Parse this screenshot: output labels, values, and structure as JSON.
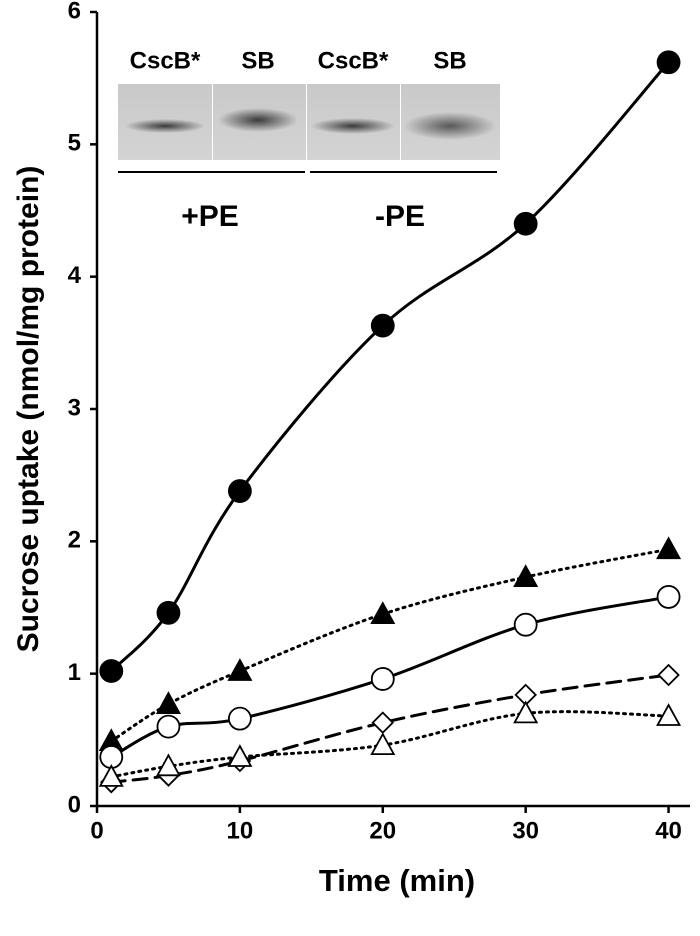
{
  "chart_data": {
    "type": "line",
    "xlabel": "Time (min)",
    "ylabel": "Sucrose uptake (nmol/mg protein)",
    "x": [
      1,
      5,
      10,
      20,
      30,
      40
    ],
    "xlim": [
      0,
      41.5
    ],
    "xticks": [
      0,
      10,
      20,
      30,
      40
    ],
    "ylim": [
      0,
      6
    ],
    "yticks": [
      0,
      1,
      2,
      3,
      4,
      5,
      6
    ],
    "series": [
      {
        "color": "#000000",
        "marker": "circle",
        "fill": "filled",
        "linestyle": "solid",
        "values": [
          1.02,
          1.46,
          2.38,
          3.63,
          4.4,
          5.62
        ]
      },
      {
        "color": "#000000",
        "marker": "triangle",
        "fill": "filled",
        "linestyle": "dotted",
        "values": [
          0.49,
          0.77,
          1.02,
          1.45,
          1.73,
          1.94
        ]
      },
      {
        "color": "#000000",
        "marker": "circle",
        "fill": "open",
        "linestyle": "solid",
        "values": [
          0.37,
          0.6,
          0.66,
          0.96,
          1.37,
          1.58
        ]
      },
      {
        "color": "#000000",
        "marker": "diamond",
        "fill": "open",
        "linestyle": "dashed",
        "values": [
          0.18,
          0.23,
          0.34,
          0.63,
          0.84,
          0.99
        ]
      },
      {
        "color": "#000000",
        "marker": "triangle",
        "fill": "open",
        "linestyle": "dotted",
        "values": [
          0.22,
          0.3,
          0.37,
          0.46,
          0.7,
          0.68
        ]
      }
    ]
  },
  "inset": {
    "lanes": [
      "CscB*",
      "SB",
      "CscB*",
      "SB"
    ],
    "groups": [
      "+PE",
      "-PE"
    ]
  }
}
